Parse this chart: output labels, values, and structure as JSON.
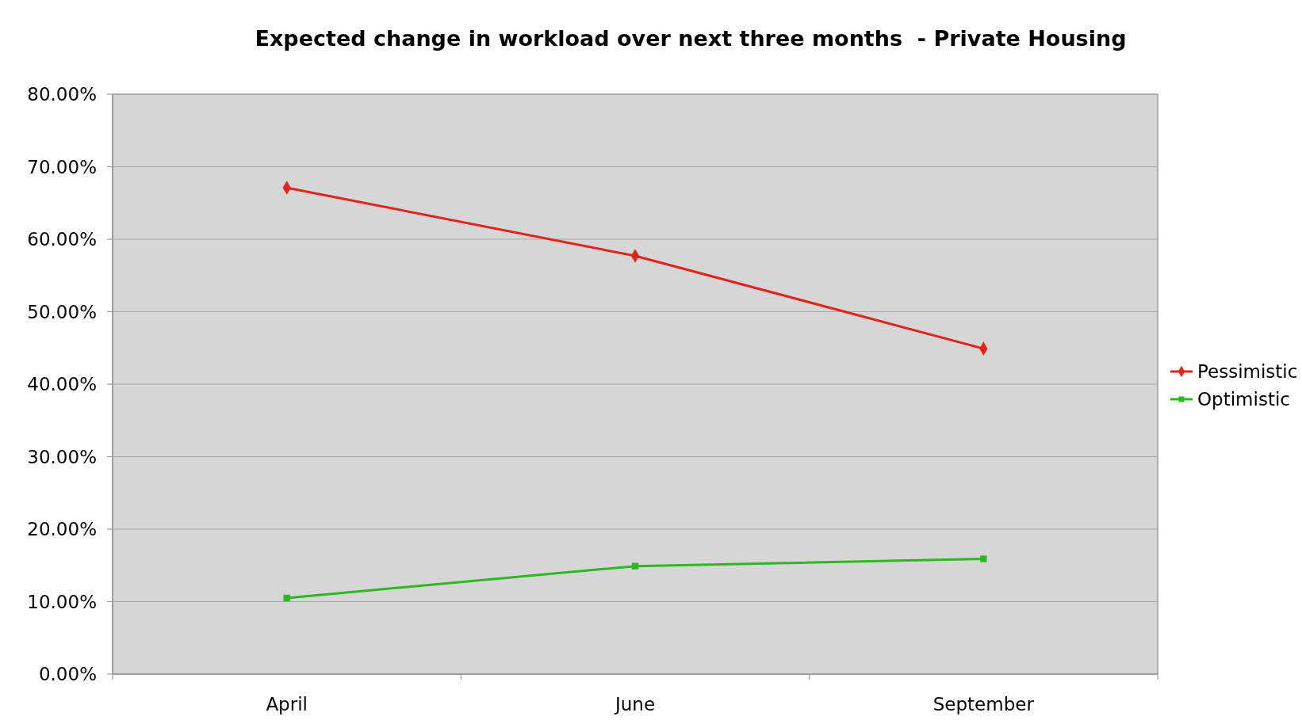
{
  "chart_data": {
    "type": "line",
    "title": "Expected change in workload over next three months  - Private Housing",
    "categories": [
      "April",
      "June",
      "September"
    ],
    "series": [
      {
        "name": "Pessimistic",
        "color": "#e3231c",
        "marker": "diamond",
        "values": [
          67.1,
          57.7,
          44.9
        ]
      },
      {
        "name": "Optimistic",
        "color": "#2cb820",
        "marker": "square",
        "values": [
          10.5,
          14.9,
          15.9
        ]
      }
    ],
    "ylim": [
      0,
      80
    ],
    "yticks": [
      {
        "value": 0,
        "label": "0.00%"
      },
      {
        "value": 10,
        "label": "10.00%"
      },
      {
        "value": 20,
        "label": "20.00%"
      },
      {
        "value": 30,
        "label": "30.00%"
      },
      {
        "value": 40,
        "label": "40.00%"
      },
      {
        "value": 50,
        "label": "50.00%"
      },
      {
        "value": 60,
        "label": "60.00%"
      },
      {
        "value": 70,
        "label": "70.00%"
      },
      {
        "value": 80,
        "label": "80.00%"
      }
    ],
    "grid": "y",
    "legend": "right",
    "line_style": "solid"
  }
}
